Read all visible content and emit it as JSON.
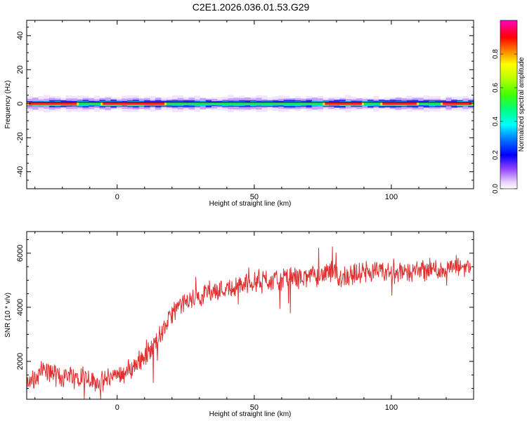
{
  "title": "C2E1.2026.036.01.53.G29",
  "chart_data": [
    {
      "type": "heatmap",
      "xlabel": "Height of straight line (km)",
      "ylabel": "Frequency (Hz)",
      "xlim": [
        -33,
        130
      ],
      "ylim": [
        -50,
        49
      ],
      "xticks": [
        0,
        50,
        100
      ],
      "yticks": [
        40,
        20,
        0,
        -20,
        -40
      ],
      "ytick_labels": [
        "40",
        "20",
        "0",
        "-20",
        "-40"
      ],
      "colorbar": {
        "label": "Normalized spectral amplitude",
        "range": [
          0.0,
          1.0
        ],
        "ticks": [
          0.0,
          0.2,
          0.4,
          0.6,
          0.8
        ],
        "tick_labels": [
          "0.0",
          "0.2",
          "0.4",
          "0.6",
          "0.8"
        ],
        "colormap": "gist_ncar"
      },
      "ridge": {
        "x_range": [
          -33,
          130
        ],
        "center_frequency": 0,
        "peak_bands": [
          [
            -33,
            -14
          ],
          [
            -6,
            18
          ],
          [
            75,
            90
          ],
          [
            96,
            110
          ],
          [
            118,
            130
          ]
        ]
      }
    },
    {
      "type": "line",
      "xlabel": "Height of straight line (km)",
      "ylabel": "SNR (10 * v/v)",
      "xlim": [
        -33,
        130
      ],
      "ylim": [
        600,
        6800
      ],
      "xticks": [
        0,
        50,
        100
      ],
      "yticks": [
        2000,
        4000,
        6000
      ],
      "series": [
        {
          "color": "#e03030",
          "x": [
            -33,
            -30,
            -27,
            -24,
            -21,
            -18,
            -15,
            -12,
            -9,
            -6,
            -3,
            0,
            3,
            6,
            9,
            12,
            15,
            18,
            21,
            24,
            27,
            30,
            33,
            36,
            39,
            42,
            45,
            48,
            51,
            54,
            57,
            60,
            63,
            66,
            69,
            72,
            75,
            78,
            81,
            84,
            87,
            90,
            93,
            96,
            99,
            102,
            105,
            108,
            111,
            114,
            117,
            120,
            123,
            126,
            129
          ],
          "y": [
            1100,
            1300,
            1700,
            1600,
            1400,
            1500,
            1500,
            1500,
            1300,
            1200,
            1400,
            1500,
            1600,
            1800,
            2100,
            2400,
            2800,
            3400,
            3900,
            4100,
            4300,
            4400,
            4600,
            4600,
            4700,
            4700,
            4800,
            4900,
            5000,
            5000,
            5000,
            5000,
            5100,
            5100,
            5100,
            5200,
            5200,
            5300,
            5100,
            5200,
            5200,
            5300,
            5300,
            5300,
            5300,
            5300,
            5300,
            5300,
            5400,
            5400,
            5400,
            5400,
            5500,
            5500,
            5500
          ]
        }
      ]
    }
  ]
}
